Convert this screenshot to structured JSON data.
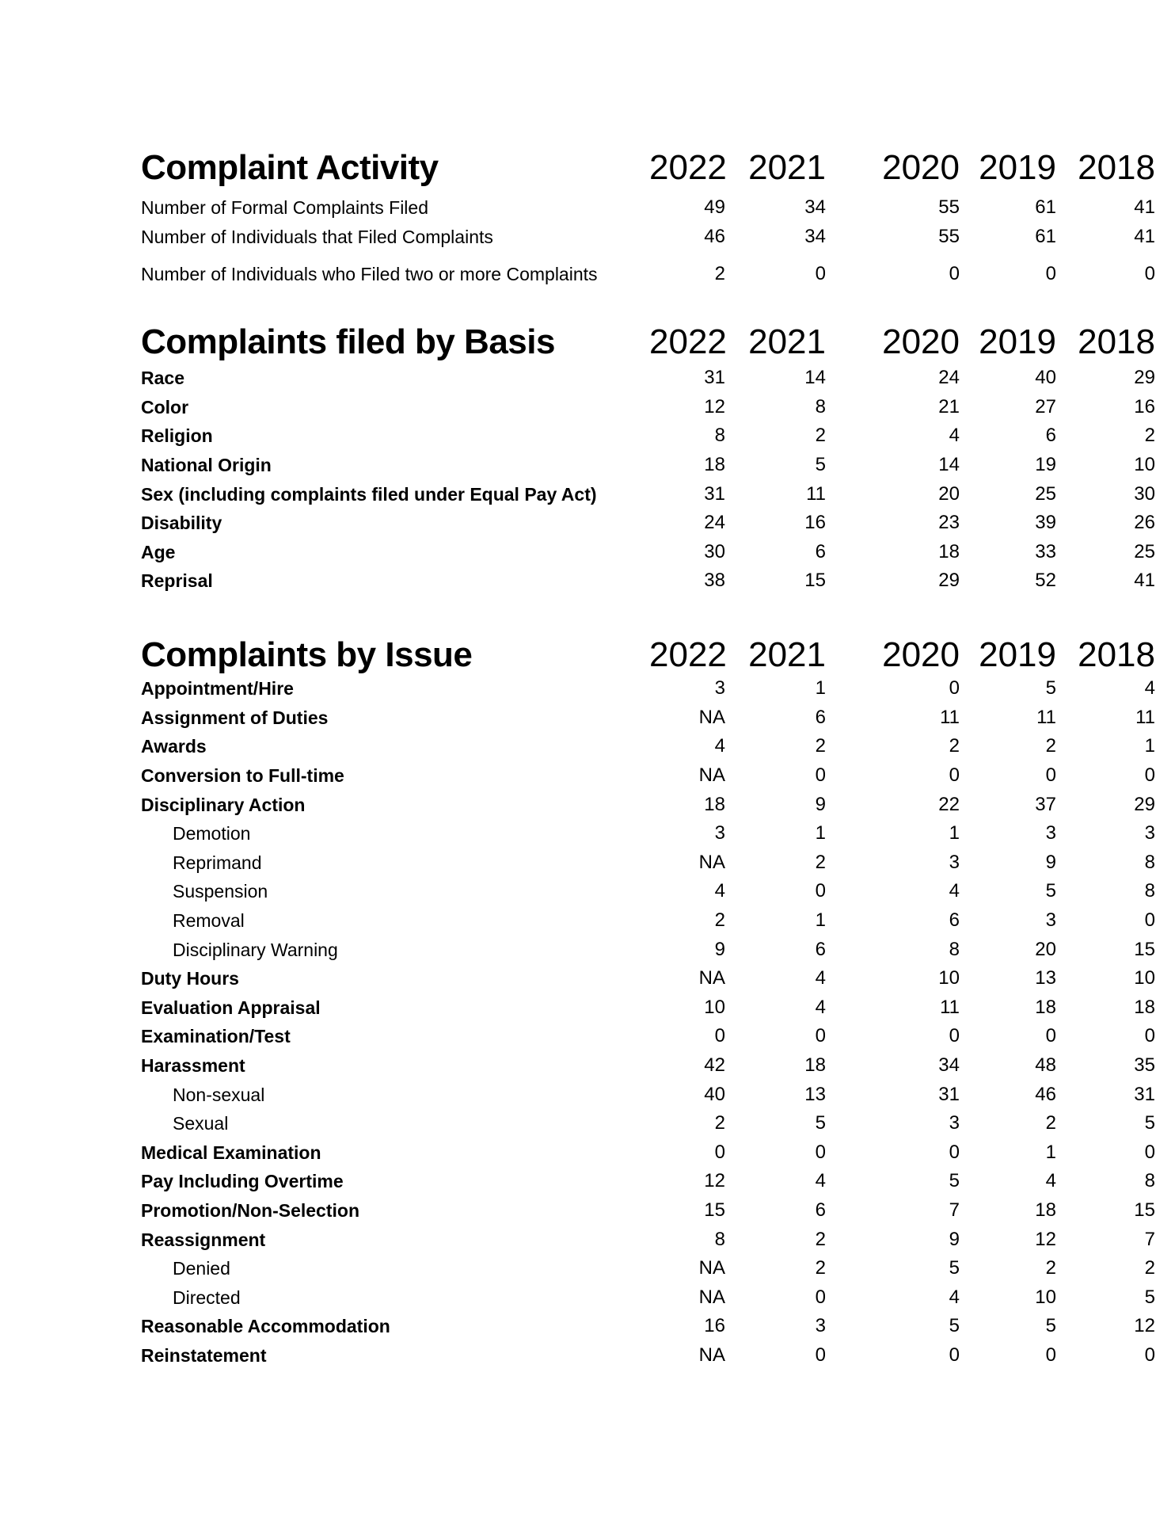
{
  "page_background": "#ffffff",
  "text_color": "#000000",
  "years": [
    "2022",
    "2021",
    "2020",
    "2019",
    "2018"
  ],
  "sections": [
    {
      "title": "Complaint Activity",
      "rows": [
        {
          "label": "Number of Formal Complaints Filed",
          "bold": false,
          "indent": false,
          "gap": false,
          "values": [
            "49",
            "34",
            "55",
            "61",
            "41"
          ]
        },
        {
          "label": "Number of Individuals that Filed Complaints",
          "bold": false,
          "indent": false,
          "gap": false,
          "values": [
            "46",
            "34",
            "55",
            "61",
            "41"
          ]
        },
        {
          "label": "Number of Individuals who Filed two or more Complaints",
          "bold": false,
          "indent": false,
          "gap": true,
          "values": [
            "2",
            "0",
            "0",
            "0",
            "0"
          ]
        }
      ]
    },
    {
      "title": "Complaints filed by Basis",
      "rows": [
        {
          "label": "Race",
          "bold": true,
          "indent": false,
          "gap": false,
          "values": [
            "31",
            "14",
            "24",
            "40",
            "29"
          ]
        },
        {
          "label": "Color",
          "bold": true,
          "indent": false,
          "gap": false,
          "values": [
            "12",
            "8",
            "21",
            "27",
            "16"
          ]
        },
        {
          "label": "Religion",
          "bold": true,
          "indent": false,
          "gap": false,
          "values": [
            "8",
            "2",
            "4",
            "6",
            "2"
          ]
        },
        {
          "label": "National Origin",
          "bold": true,
          "indent": false,
          "gap": false,
          "values": [
            "18",
            "5",
            "14",
            "19",
            "10"
          ]
        },
        {
          "label": "Sex (including complaints filed under Equal Pay Act)",
          "bold": true,
          "indent": false,
          "gap": false,
          "values": [
            "31",
            "11",
            "20",
            "25",
            "30"
          ]
        },
        {
          "label": "Disability",
          "bold": true,
          "indent": false,
          "gap": false,
          "values": [
            "24",
            "16",
            "23",
            "39",
            "26"
          ]
        },
        {
          "label": "Age",
          "bold": true,
          "indent": false,
          "gap": false,
          "values": [
            "30",
            "6",
            "18",
            "33",
            "25"
          ]
        },
        {
          "label": "Reprisal",
          "bold": true,
          "indent": false,
          "gap": false,
          "values": [
            "38",
            "15",
            "29",
            "52",
            "41"
          ]
        }
      ]
    },
    {
      "title": "Complaints by Issue",
      "rows": [
        {
          "label": "Appointment/Hire",
          "bold": true,
          "indent": false,
          "gap": false,
          "values": [
            "3",
            "1",
            "0",
            "5",
            "4"
          ]
        },
        {
          "label": "Assignment of Duties",
          "bold": true,
          "indent": false,
          "gap": false,
          "values": [
            "NA",
            "6",
            "11",
            "11",
            "11"
          ]
        },
        {
          "label": "Awards",
          "bold": true,
          "indent": false,
          "gap": false,
          "values": [
            "4",
            "2",
            "2",
            "2",
            "1"
          ]
        },
        {
          "label": "Conversion to Full-time",
          "bold": true,
          "indent": false,
          "gap": false,
          "values": [
            "NA",
            "0",
            "0",
            "0",
            "0"
          ]
        },
        {
          "label": "Disciplinary Action",
          "bold": true,
          "indent": false,
          "gap": false,
          "values": [
            "18",
            "9",
            "22",
            "37",
            "29"
          ]
        },
        {
          "label": "Demotion",
          "bold": false,
          "indent": true,
          "gap": false,
          "values": [
            "3",
            "1",
            "1",
            "3",
            "3"
          ]
        },
        {
          "label": "Reprimand",
          "bold": false,
          "indent": true,
          "gap": false,
          "values": [
            "NA",
            "2",
            "3",
            "9",
            "8"
          ]
        },
        {
          "label": "Suspension",
          "bold": false,
          "indent": true,
          "gap": false,
          "values": [
            "4",
            "0",
            "4",
            "5",
            "8"
          ]
        },
        {
          "label": "Removal",
          "bold": false,
          "indent": true,
          "gap": false,
          "values": [
            "2",
            "1",
            "6",
            "3",
            "0"
          ]
        },
        {
          "label": "Disciplinary Warning",
          "bold": false,
          "indent": true,
          "gap": false,
          "values": [
            "9",
            "6",
            "8",
            "20",
            "15"
          ]
        },
        {
          "label": "Duty Hours",
          "bold": true,
          "indent": false,
          "gap": false,
          "values": [
            "NA",
            "4",
            "10",
            "13",
            "10"
          ]
        },
        {
          "label": "Evaluation Appraisal",
          "bold": true,
          "indent": false,
          "gap": false,
          "values": [
            "10",
            "4",
            "11",
            "18",
            "18"
          ]
        },
        {
          "label": "Examination/Test",
          "bold": true,
          "indent": false,
          "gap": false,
          "values": [
            "0",
            "0",
            "0",
            "0",
            "0"
          ]
        },
        {
          "label": "Harassment",
          "bold": true,
          "indent": false,
          "gap": false,
          "values": [
            "42",
            "18",
            "34",
            "48",
            "35"
          ]
        },
        {
          "label": "Non-sexual",
          "bold": false,
          "indent": true,
          "gap": false,
          "values": [
            "40",
            "13",
            "31",
            "46",
            "31"
          ]
        },
        {
          "label": "Sexual",
          "bold": false,
          "indent": true,
          "gap": false,
          "values": [
            "2",
            "5",
            "3",
            "2",
            "5"
          ]
        },
        {
          "label": "Medical Examination",
          "bold": true,
          "indent": false,
          "gap": false,
          "values": [
            "0",
            "0",
            "0",
            "1",
            "0"
          ]
        },
        {
          "label": "Pay Including Overtime",
          "bold": true,
          "indent": false,
          "gap": false,
          "values": [
            "12",
            "4",
            "5",
            "4",
            "8"
          ]
        },
        {
          "label": "Promotion/Non-Selection",
          "bold": true,
          "indent": false,
          "gap": false,
          "values": [
            "15",
            "6",
            "7",
            "18",
            "15"
          ]
        },
        {
          "label": "Reassignment",
          "bold": true,
          "indent": false,
          "gap": false,
          "values": [
            "8",
            "2",
            "9",
            "12",
            "7"
          ]
        },
        {
          "label": "Denied",
          "bold": false,
          "indent": true,
          "gap": false,
          "values": [
            "NA",
            "2",
            "5",
            "2",
            "2"
          ]
        },
        {
          "label": "Directed",
          "bold": false,
          "indent": true,
          "gap": false,
          "values": [
            "NA",
            "0",
            "4",
            "10",
            "5"
          ]
        },
        {
          "label": "Reasonable Accommodation",
          "bold": true,
          "indent": false,
          "gap": false,
          "values": [
            "16",
            "3",
            "5",
            "5",
            "12"
          ]
        },
        {
          "label": "Reinstatement",
          "bold": true,
          "indent": false,
          "gap": false,
          "values": [
            "NA",
            "0",
            "0",
            "0",
            "0"
          ]
        }
      ]
    }
  ]
}
